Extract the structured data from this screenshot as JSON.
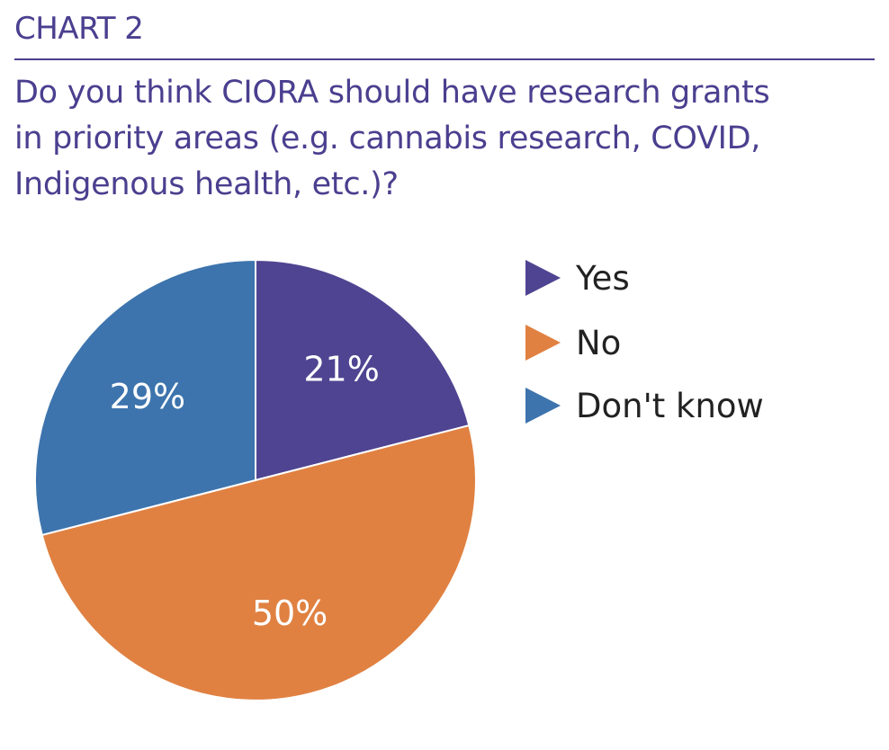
{
  "header": {
    "chart_label": "CHART 2",
    "question_lines": [
      "Do you think CIORA should have research grants",
      "in priority areas (e.g. cannabis research, COVID,",
      "Indigenous health, etc.)?"
    ]
  },
  "colors": {
    "title": "#4a3f8f",
    "yes": "#4f4491",
    "no": "#e08142",
    "dont_know": "#3d74ad"
  },
  "chart_data": {
    "type": "pie",
    "categories": [
      "Yes",
      "No",
      "Don't know"
    ],
    "values": [
      21,
      50,
      29
    ],
    "data_labels": [
      "21%",
      "50%",
      "29%"
    ],
    "colors": [
      "#4f4491",
      "#e08142",
      "#3d74ad"
    ],
    "start_angle_deg": 0,
    "direction": "clockwise",
    "legend": "right"
  },
  "legend": {
    "items": [
      {
        "label": "Yes",
        "color": "#4f4491"
      },
      {
        "label": "No",
        "color": "#e08142"
      },
      {
        "label": "Don't know",
        "color": "#3d74ad"
      }
    ]
  }
}
